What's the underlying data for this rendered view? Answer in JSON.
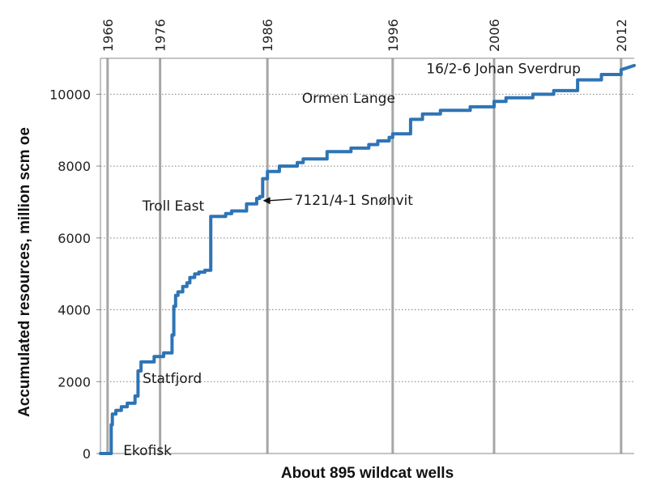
{
  "chart_data": {
    "type": "line",
    "xlabel": "About 895 wildcat wells",
    "ylabel": "Accumulated resources, million scm oe",
    "xlim": [
      0,
      895
    ],
    "ylim": [
      0,
      11000
    ],
    "y_ticks": [
      0,
      2000,
      4000,
      6000,
      8000,
      10000
    ],
    "y_tick_labels": [
      "0",
      "2000",
      "4000",
      "6000",
      "8000",
      "10000"
    ],
    "top_ticks": [
      {
        "well": 12,
        "label": "1966"
      },
      {
        "well": 100,
        "label": "1976"
      },
      {
        "well": 280,
        "label": "1986"
      },
      {
        "well": 490,
        "label": "1996"
      },
      {
        "well": 660,
        "label": "2006"
      },
      {
        "well": 873,
        "label": "2012"
      }
    ],
    "grid": {
      "vertical": true,
      "horizontal_dotted": true
    },
    "colors": {
      "series": "#2e74b5",
      "grid_vertical": "#a6a6a6",
      "grid_horizontal": "#7f7f7f",
      "axis": "#888888"
    },
    "series": [
      {
        "x": [
          0,
          18,
          18,
          20,
          20,
          26,
          26,
          35,
          35,
          45,
          45,
          58,
          58,
          63,
          63,
          68,
          68,
          76,
          76,
          90,
          90,
          106,
          106,
          120,
          120,
          123,
          123,
          126,
          126,
          130,
          130,
          138,
          138,
          145,
          145,
          150,
          150,
          158,
          158,
          165,
          165,
          175,
          175,
          185,
          185,
          210,
          210,
          220,
          220,
          245,
          245,
          262,
          262,
          267,
          267,
          272,
          272,
          280,
          280,
          300,
          300,
          330,
          330,
          340,
          340,
          380,
          380,
          420,
          420,
          450,
          450,
          465,
          465,
          484,
          484,
          490,
          490,
          520,
          520,
          540,
          540,
          570,
          570,
          620,
          620,
          660,
          660,
          680,
          680,
          725,
          725,
          760,
          760,
          800,
          800,
          840,
          840,
          873,
          873,
          895
        ],
        "y": [
          0,
          0,
          800,
          800,
          1100,
          1100,
          1200,
          1200,
          1300,
          1300,
          1400,
          1400,
          1600,
          1600,
          2300,
          2300,
          2550,
          2550,
          2550,
          2550,
          2700,
          2700,
          2800,
          2800,
          3300,
          3300,
          4100,
          4100,
          4400,
          4400,
          4500,
          4500,
          4650,
          4650,
          4750,
          4750,
          4900,
          4900,
          5000,
          5000,
          5050,
          5050,
          5100,
          5100,
          6600,
          6600,
          6680,
          6680,
          6750,
          6750,
          6950,
          6950,
          7100,
          7100,
          7150,
          7150,
          7650,
          7650,
          7850,
          7850,
          8000,
          8000,
          8100,
          8100,
          8200,
          8200,
          8400,
          8400,
          8500,
          8500,
          8600,
          8600,
          8700,
          8700,
          8800,
          8800,
          8900,
          8900,
          9300,
          9300,
          9450,
          9450,
          9550,
          9550,
          9650,
          9650,
          9800,
          9800,
          9900,
          9900,
          10000,
          10000,
          10100,
          10100,
          10400,
          10400,
          10550,
          10550,
          10680,
          10800
        ]
      }
    ],
    "annotations": [
      {
        "text": "Ekofisk",
        "well": 22,
        "value": 900
      },
      {
        "text": "Statfjord",
        "well": 68,
        "value": 2550
      },
      {
        "text": "Troll East",
        "well": 185,
        "value": 6650
      },
      {
        "text": "7121/4-1 Snøhvit",
        "well": 267,
        "value": 7150
      },
      {
        "text": "Ormen Lange",
        "well": 497,
        "value": 9350
      },
      {
        "text": "16/2-6 Johan Sverdrup",
        "well": 808,
        "value": 10450
      }
    ]
  }
}
